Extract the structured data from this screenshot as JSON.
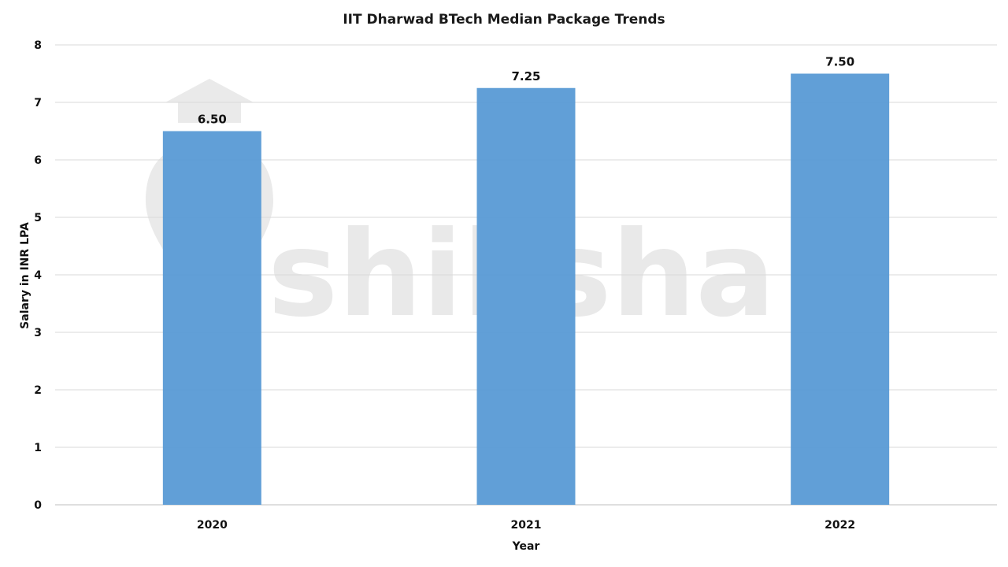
{
  "chart_data": {
    "type": "bar",
    "title": "IIT Dharwad BTech Median Package Trends",
    "xlabel": "Year",
    "ylabel": "Salary in INR LPA",
    "categories": [
      "2020",
      "2021",
      "2022"
    ],
    "values": [
      6.5,
      7.25,
      7.5
    ],
    "value_labels": [
      "6.50",
      "7.25",
      "7.50"
    ],
    "ylim": [
      0,
      8
    ],
    "yticks": [
      "0",
      "1",
      "2",
      "3",
      "4",
      "5",
      "6",
      "7",
      "8"
    ],
    "grid": true,
    "bar_color": "#5b9bd5",
    "legend": "none"
  },
  "watermark": {
    "text": "shiksha",
    "color": "#e9e9e9"
  }
}
